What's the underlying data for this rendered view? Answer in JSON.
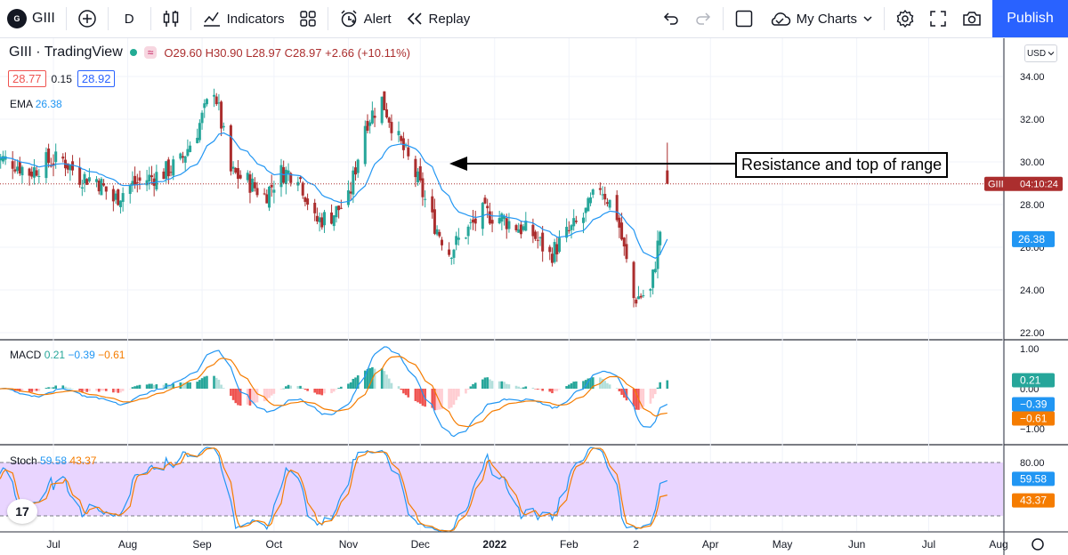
{
  "toolbar": {
    "symbol": "GIII",
    "interval": "D",
    "indicators_label": "Indicators",
    "alert_label": "Alert",
    "replay_label": "Replay",
    "my_charts_label": "My Charts",
    "publish_label": "Publish"
  },
  "legend": {
    "title": "GIII · TradingView",
    "open": "O29.60",
    "high": "H30.90",
    "low": "L28.97",
    "close": "C28.97",
    "change": "+2.66 (+10.11%)",
    "bid": "28.77",
    "spread": "0.15",
    "ask": "28.92"
  },
  "ema_legend": {
    "name": "EMA",
    "value": "26.38"
  },
  "macd_legend": {
    "name": "MACD",
    "hist": "0.21",
    "macd": "−0.39",
    "signal": "−0.61"
  },
  "stoch_legend": {
    "name": "Stoch",
    "k": "59.58",
    "d": "43.37"
  },
  "annotation": {
    "text": "Resistance and top of range"
  },
  "price_axis": {
    "currency": "USD",
    "labels": [
      "34.00",
      "32.00",
      "30.00",
      "28.00",
      "26.00",
      "24.00",
      "22.00"
    ],
    "price_tag_symbol": "GIII",
    "price_tag_time": "04:10:24",
    "ema_tag": "26.38"
  },
  "macd_axis": {
    "labels": [
      "1.00",
      "0.00",
      "−1.00"
    ],
    "hist_tag": "0.21",
    "macd_tag": "−0.39",
    "signal_tag": "−0.61"
  },
  "stoch_axis": {
    "labels": [
      "80.00"
    ],
    "k_tag": "59.58",
    "d_tag": "43.37"
  },
  "time_axis": {
    "labels": [
      "Jul",
      "Aug",
      "Sep",
      "Oct",
      "Nov",
      "Dec",
      "2022",
      "Feb",
      "2",
      "Apr",
      "May",
      "Jun",
      "Jul",
      "Aug"
    ]
  },
  "colors": {
    "up": "#26a69a",
    "down": "#ab2e2e",
    "ema": "#2196f3",
    "macd": "#2196f3",
    "signal": "#f57c00",
    "stoch_band": "#e9d5ff"
  },
  "chart_data": {
    "type": "candlestick",
    "symbol": "GIII",
    "interval": "D",
    "ylim": [
      22,
      35
    ],
    "x_start": "2021-06-07",
    "x_end": "2022-08-05",
    "close_series": [
      [
        "2021-06-07",
        30.2
      ],
      [
        "2021-06-14",
        30.0
      ],
      [
        "2021-06-21",
        29.5
      ],
      [
        "2021-06-28",
        30.0
      ],
      [
        "2021-07-05",
        30.1
      ],
      [
        "2021-07-12",
        29.3
      ],
      [
        "2021-07-19",
        29.2
      ],
      [
        "2021-07-26",
        28.2
      ],
      [
        "2021-08-02",
        28.9
      ],
      [
        "2021-08-09",
        29.2
      ],
      [
        "2021-08-16",
        29.5
      ],
      [
        "2021-08-23",
        30.0
      ],
      [
        "2021-08-30",
        31.5
      ],
      [
        "2021-09-06",
        33.5
      ],
      [
        "2021-09-13",
        29.5
      ],
      [
        "2021-09-20",
        29.1
      ],
      [
        "2021-09-27",
        28.4
      ],
      [
        "2021-10-04",
        29.5
      ],
      [
        "2021-10-11",
        29.5
      ],
      [
        "2021-10-18",
        27.2
      ],
      [
        "2021-10-25",
        27.5
      ],
      [
        "2021-11-01",
        28.2
      ],
      [
        "2021-11-08",
        31.8
      ],
      [
        "2021-11-15",
        32.9
      ],
      [
        "2021-11-22",
        31.0
      ],
      [
        "2021-11-29",
        29.4
      ],
      [
        "2021-12-06",
        27.3
      ],
      [
        "2021-12-13",
        25.8
      ],
      [
        "2021-12-20",
        26.7
      ],
      [
        "2021-12-27",
        27.6
      ],
      [
        "2022-01-03",
        27.4
      ],
      [
        "2022-01-10",
        27.0
      ],
      [
        "2022-01-17",
        26.6
      ],
      [
        "2022-01-24",
        25.6
      ],
      [
        "2022-01-31",
        26.6
      ],
      [
        "2022-02-07",
        27.4
      ],
      [
        "2022-02-14",
        28.9
      ],
      [
        "2022-02-21",
        27.5
      ],
      [
        "2022-02-28",
        23.6
      ],
      [
        "2022-03-07",
        23.9
      ],
      [
        "2022-03-14",
        28.97
      ]
    ],
    "ema_value_last": 26.38,
    "macd": {
      "hist": 0.21,
      "macd": -0.39,
      "signal": -0.61,
      "ylim": [
        -1.2,
        1.1
      ]
    },
    "stoch": {
      "k": 59.58,
      "d": 43.37,
      "upper_band": 80,
      "lower_band": 20,
      "ylim": [
        0,
        100
      ]
    },
    "annotations": [
      {
        "text": "Resistance and top of range",
        "price": 30.0
      }
    ]
  }
}
